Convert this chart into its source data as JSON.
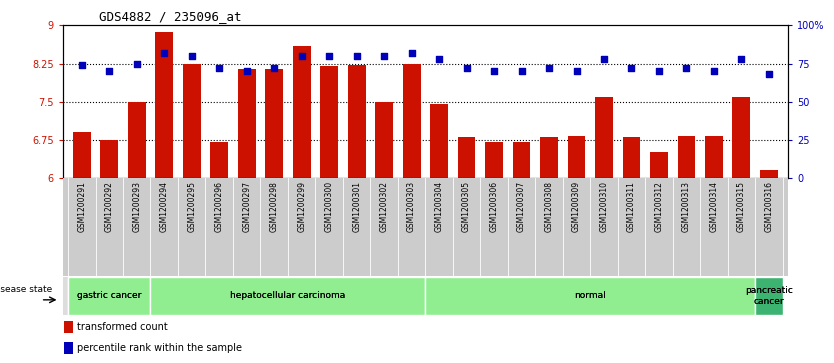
{
  "title": "GDS4882 / 235096_at",
  "samples": [
    "GSM1200291",
    "GSM1200292",
    "GSM1200293",
    "GSM1200294",
    "GSM1200295",
    "GSM1200296",
    "GSM1200297",
    "GSM1200298",
    "GSM1200299",
    "GSM1200300",
    "GSM1200301",
    "GSM1200302",
    "GSM1200303",
    "GSM1200304",
    "GSM1200305",
    "GSM1200306",
    "GSM1200307",
    "GSM1200308",
    "GSM1200309",
    "GSM1200310",
    "GSM1200311",
    "GSM1200312",
    "GSM1200313",
    "GSM1200314",
    "GSM1200315",
    "GSM1200316"
  ],
  "bar_values": [
    6.9,
    6.75,
    7.5,
    8.87,
    8.25,
    6.7,
    8.15,
    8.15,
    8.6,
    8.2,
    8.22,
    7.5,
    8.25,
    7.45,
    6.8,
    6.7,
    6.7,
    6.8,
    6.82,
    7.6,
    6.8,
    6.5,
    6.82,
    6.82,
    7.6,
    6.15
  ],
  "percentile_values": [
    74,
    70,
    75,
    82,
    80,
    72,
    70,
    72,
    80,
    80,
    80,
    80,
    82,
    78,
    72,
    70,
    70,
    72,
    70,
    78,
    72,
    70,
    72,
    70,
    78,
    68
  ],
  "bar_color": "#cc1100",
  "dot_color": "#0000bb",
  "ylim_left": [
    6.0,
    9.0
  ],
  "ylim_right": [
    0,
    100
  ],
  "yticks_left": [
    6.0,
    6.75,
    7.5,
    8.25,
    9.0
  ],
  "ytick_labels_left": [
    "6",
    "6.75",
    "7.5",
    "8.25",
    "9"
  ],
  "yticks_right": [
    0,
    25,
    50,
    75,
    100
  ],
  "ytick_labels_right": [
    "0",
    "25",
    "50",
    "75",
    "100%"
  ],
  "hlines": [
    6.75,
    7.5,
    8.25
  ],
  "plot_bg": "#ffffff",
  "xtick_bg": "#cccccc",
  "group_defs": [
    {
      "label": "gastric cancer",
      "start": 0,
      "end": 2,
      "color": "#90ee90"
    },
    {
      "label": "hepatocellular carcinoma",
      "start": 3,
      "end": 12,
      "color": "#90ee90"
    },
    {
      "label": "normal",
      "start": 13,
      "end": 24,
      "color": "#90ee90"
    },
    {
      "label": "pancreatic\ncancer",
      "start": 25,
      "end": 25,
      "color": "#3cb371"
    }
  ]
}
